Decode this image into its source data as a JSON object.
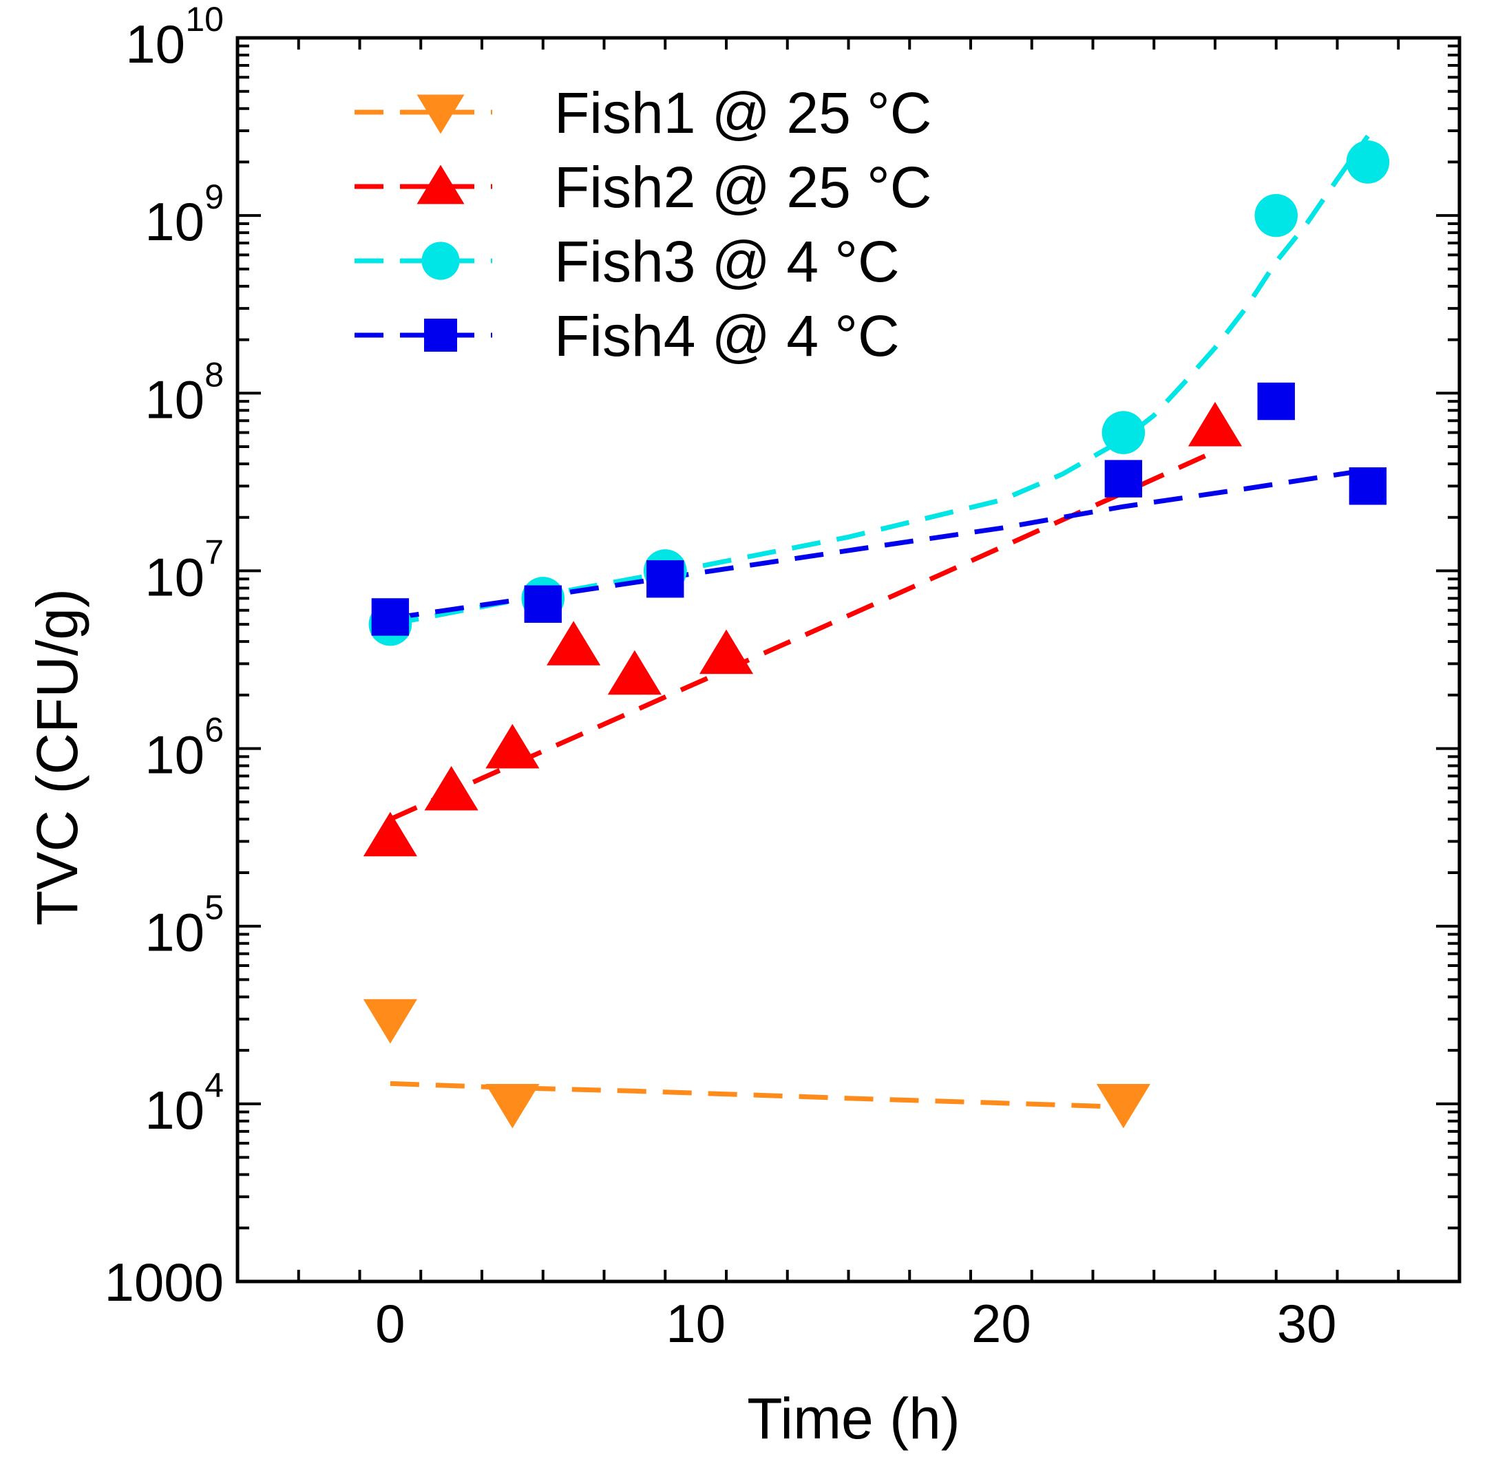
{
  "chart_data": {
    "type": "scatter",
    "title": "",
    "xlabel": "Time (h)",
    "ylabel": "TVC (CFU/g)",
    "xlim": [
      -5,
      35
    ],
    "ylim": [
      1000,
      10000000000
    ],
    "yscale": "log",
    "x_ticks": [
      {
        "value": 0,
        "label": "0"
      },
      {
        "value": 10,
        "label": "10"
      },
      {
        "value": 20,
        "label": "20"
      },
      {
        "value": 30,
        "label": "30"
      }
    ],
    "y_ticks": [
      {
        "value": 1000,
        "base": "1000",
        "exp": ""
      },
      {
        "value": 10000,
        "base": "10",
        "exp": "4"
      },
      {
        "value": 100000,
        "base": "10",
        "exp": "5"
      },
      {
        "value": 1000000,
        "base": "10",
        "exp": "6"
      },
      {
        "value": 10000000,
        "base": "10",
        "exp": "7"
      },
      {
        "value": 100000000,
        "base": "10",
        "exp": "8"
      },
      {
        "value": 1000000000,
        "base": "10",
        "exp": "9"
      },
      {
        "value": 10000000000,
        "base": "10",
        "exp": "10"
      }
    ],
    "legend_position": "top-left",
    "series": [
      {
        "name": "Fish1 @ 25 °C",
        "color": "#ff8c1a",
        "marker": "triangle-down",
        "x": [
          0,
          4,
          24
        ],
        "y": [
          30000,
          10000,
          10000
        ],
        "fit": {
          "x": [
            0,
            4,
            8,
            12,
            16,
            20,
            24
          ],
          "y": [
            13000,
            12300,
            11800,
            11200,
            10600,
            10100,
            9600
          ]
        }
      },
      {
        "name": "Fish2 @ 25 °C",
        "color": "#ff0000",
        "marker": "triangle-up",
        "x": [
          0,
          2,
          4,
          6,
          8,
          11,
          27
        ],
        "y": [
          320000,
          580000,
          1000000,
          3800000,
          2600000,
          3400000,
          65000000
        ],
        "fit": {
          "x": [
            0,
            3,
            6,
            9,
            12,
            15,
            18,
            21,
            24,
            27
          ],
          "y": [
            400000,
            680000,
            1150000,
            1950000,
            3300000,
            5600000,
            9500000,
            16200000,
            27500000,
            47000000
          ]
        }
      },
      {
        "name": "Fish3 @   4 °C",
        "color": "#00e5e5",
        "marker": "circle",
        "x": [
          0,
          5,
          9,
          24,
          29,
          32
        ],
        "y": [
          5000000,
          7000000,
          10000000,
          60000000,
          1000000000,
          2000000000
        ],
        "fit": {
          "x": [
            0,
            5,
            10,
            15,
            20,
            22,
            24,
            25,
            26,
            27,
            28,
            29,
            30,
            31,
            32
          ],
          "y": [
            5000000,
            7300000,
            10500000,
            15500000,
            25000000,
            35000000,
            55000000,
            75000000,
            115000000,
            180000000,
            300000000,
            550000000,
            900000000,
            1600000000,
            2800000000
          ]
        }
      },
      {
        "name": "Fish4 @   4 °C",
        "color": "#0000ee",
        "marker": "square",
        "x": [
          0,
          5,
          9,
          24,
          29,
          32
        ],
        "y": [
          5500000,
          6500000,
          9000000,
          33000000,
          90000000,
          30000000
        ],
        "fit": {
          "x": [
            0,
            4,
            8,
            12,
            16,
            20,
            24,
            28,
            32
          ],
          "y": [
            5400000,
            6800000,
            8600000,
            10900000,
            13800000,
            17400000,
            23000000,
            29000000,
            37000000
          ]
        }
      }
    ]
  }
}
